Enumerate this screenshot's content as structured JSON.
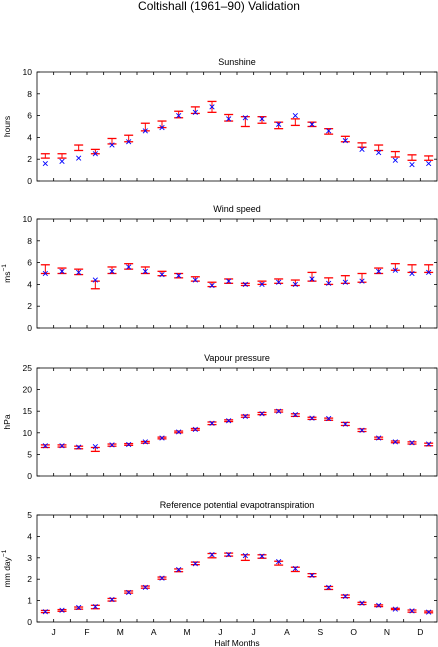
{
  "figure": {
    "title": "Coltishall (1961–90) Validation",
    "xlabel": "Half Months",
    "month_labels": [
      "J",
      "F",
      "M",
      "A",
      "M",
      "J",
      "J",
      "A",
      "S",
      "O",
      "N",
      "D"
    ]
  },
  "colors": {
    "observed_bar": "#ff0000",
    "model_cross": "#0000ff",
    "axis": "#000000"
  },
  "chart_data": [
    {
      "type": "scatter",
      "title": "Sunshine",
      "ylabel": "hours",
      "ylim": [
        0,
        10
      ],
      "yticks": [
        0,
        2,
        4,
        6,
        8,
        10
      ],
      "x": [
        1,
        2,
        3,
        4,
        5,
        6,
        7,
        8,
        9,
        10,
        11,
        12,
        13,
        14,
        15,
        16,
        17,
        18,
        19,
        20,
        21,
        22,
        23,
        24
      ],
      "series": [
        {
          "marker": "errorbar",
          "low": [
            2.1,
            2.1,
            2.8,
            2.5,
            3.4,
            3.6,
            4.6,
            4.9,
            5.8,
            6.2,
            6.3,
            5.5,
            5.0,
            5.3,
            4.8,
            5.1,
            5.0,
            4.3,
            3.6,
            3.1,
            2.8,
            2.2,
            1.9,
            1.9
          ],
          "high": [
            2.5,
            2.5,
            3.3,
            2.9,
            3.9,
            4.2,
            5.3,
            5.5,
            6.4,
            6.8,
            7.3,
            6.1,
            5.9,
            5.9,
            5.4,
            5.7,
            5.4,
            4.8,
            4.1,
            3.5,
            3.3,
            2.7,
            2.4,
            2.3
          ]
        },
        {
          "marker": "cross",
          "values": [
            1.6,
            1.8,
            2.1,
            2.5,
            3.3,
            3.6,
            4.6,
            4.9,
            6.0,
            6.3,
            6.8,
            5.7,
            5.8,
            5.7,
            5.2,
            6.0,
            5.2,
            4.6,
            3.7,
            2.9,
            2.6,
            1.9,
            1.5,
            1.6
          ]
        }
      ]
    },
    {
      "type": "scatter",
      "title": "Wind speed",
      "ylabel": "ms",
      "ylabel_superscript": "−1",
      "ylim": [
        0,
        10
      ],
      "yticks": [
        0,
        2,
        4,
        6,
        8,
        10
      ],
      "x": [
        1,
        2,
        3,
        4,
        5,
        6,
        7,
        8,
        9,
        10,
        11,
        12,
        13,
        14,
        15,
        16,
        17,
        18,
        19,
        20,
        21,
        22,
        23,
        24
      ],
      "series": [
        {
          "marker": "errorbar",
          "low": [
            5.0,
            5.0,
            4.9,
            3.6,
            5.0,
            5.4,
            5.0,
            4.8,
            4.6,
            4.3,
            3.8,
            4.1,
            3.9,
            4.0,
            4.1,
            3.9,
            4.3,
            4.0,
            4.1,
            4.2,
            5.0,
            5.3,
            5.1,
            5.1
          ],
          "high": [
            5.8,
            5.5,
            5.4,
            4.3,
            5.6,
            5.9,
            5.6,
            5.2,
            5.0,
            4.7,
            4.2,
            4.5,
            4.1,
            4.3,
            4.5,
            4.4,
            5.1,
            4.6,
            4.8,
            5.0,
            5.5,
            5.9,
            5.8,
            5.8
          ]
        },
        {
          "marker": "cross",
          "values": [
            5.0,
            5.2,
            5.1,
            4.4,
            5.2,
            5.6,
            5.2,
            4.9,
            4.8,
            4.4,
            3.9,
            4.3,
            4.0,
            4.0,
            4.2,
            4.0,
            4.5,
            4.1,
            4.2,
            4.3,
            5.2,
            5.3,
            5.0,
            5.1
          ]
        }
      ]
    },
    {
      "type": "scatter",
      "title": "Vapour pressure",
      "ylabel": "hPa",
      "ylim": [
        0,
        25
      ],
      "yticks": [
        0,
        5,
        10,
        15,
        20,
        25
      ],
      "x": [
        1,
        2,
        3,
        4,
        5,
        6,
        7,
        8,
        9,
        10,
        11,
        12,
        13,
        14,
        15,
        16,
        17,
        18,
        19,
        20,
        21,
        22,
        23,
        24
      ],
      "series": [
        {
          "marker": "errorbar",
          "low": [
            6.6,
            6.7,
            6.3,
            5.7,
            6.9,
            7.1,
            7.6,
            8.6,
            10.0,
            10.6,
            11.9,
            12.6,
            13.6,
            14.2,
            14.8,
            13.8,
            13.1,
            12.9,
            11.7,
            10.3,
            8.5,
            7.7,
            7.4,
            7.0
          ],
          "high": [
            7.2,
            7.2,
            6.9,
            6.6,
            7.4,
            7.5,
            8.0,
            9.0,
            10.4,
            11.0,
            12.5,
            13.0,
            14.1,
            14.7,
            15.3,
            14.4,
            13.6,
            13.4,
            12.4,
            10.9,
            9.0,
            8.1,
            7.9,
            7.6
          ]
        },
        {
          "marker": "cross",
          "values": [
            7.0,
            7.0,
            6.7,
            6.8,
            7.2,
            7.3,
            7.9,
            8.8,
            10.2,
            10.8,
            12.2,
            12.8,
            13.8,
            14.4,
            15.0,
            14.2,
            13.4,
            13.3,
            12.0,
            10.6,
            8.8,
            7.9,
            7.7,
            7.4
          ]
        }
      ]
    },
    {
      "type": "scatter",
      "title": "Reference potential evapotranspiration",
      "ylabel": "mm day",
      "ylabel_superscript": "−1",
      "ylim": [
        0,
        5
      ],
      "yticks": [
        0,
        1,
        2,
        3,
        4,
        5
      ],
      "x": [
        1,
        2,
        3,
        4,
        5,
        6,
        7,
        8,
        9,
        10,
        11,
        12,
        13,
        14,
        15,
        16,
        17,
        18,
        19,
        20,
        21,
        22,
        23,
        24
      ],
      "series": [
        {
          "marker": "errorbar",
          "low": [
            0.44,
            0.5,
            0.6,
            0.62,
            0.98,
            1.35,
            1.58,
            2.0,
            2.35,
            2.68,
            3.0,
            3.08,
            2.88,
            2.98,
            2.66,
            2.36,
            2.12,
            1.52,
            1.14,
            0.82,
            0.72,
            0.58,
            0.46,
            0.43
          ],
          "high": [
            0.54,
            0.58,
            0.7,
            0.78,
            1.1,
            1.45,
            1.68,
            2.1,
            2.48,
            2.8,
            3.2,
            3.22,
            3.14,
            3.14,
            2.84,
            2.56,
            2.26,
            1.66,
            1.26,
            0.92,
            0.8,
            0.64,
            0.56,
            0.51
          ]
        },
        {
          "marker": "cross",
          "values": [
            0.48,
            0.55,
            0.68,
            0.72,
            1.05,
            1.38,
            1.62,
            2.05,
            2.45,
            2.72,
            3.15,
            3.15,
            3.1,
            3.08,
            2.82,
            2.5,
            2.18,
            1.62,
            1.2,
            0.88,
            0.78,
            0.6,
            0.52,
            0.46
          ]
        }
      ]
    }
  ]
}
